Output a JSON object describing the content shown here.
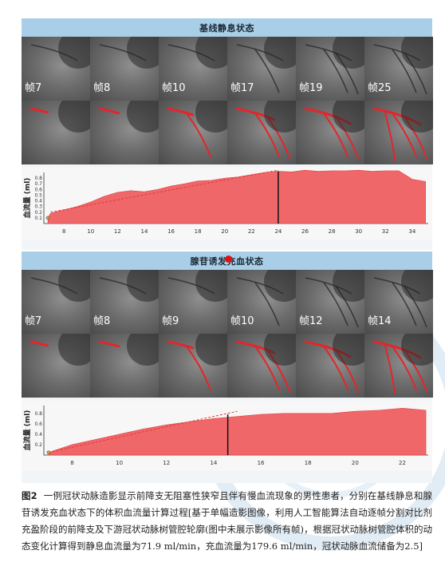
{
  "panels": [
    {
      "title": "基线静息状态",
      "frame_labels": [
        "帧7",
        "帧8",
        "帧10",
        "帧17",
        "帧19",
        "帧25"
      ],
      "chart_data": {
        "type": "area",
        "ylabel": "血流量 (ml)",
        "xlim": [
          6.5,
          35.2
        ],
        "ylim": [
          0,
          0.9
        ],
        "xticks": [
          8,
          10,
          12,
          14,
          16,
          18,
          20,
          22,
          24,
          26,
          28,
          30,
          32,
          34
        ],
        "yticks": [
          0.1,
          0.2,
          0.3,
          0.4,
          0.5,
          0.6,
          0.7,
          0.8
        ],
        "x": [
          6.8,
          7,
          8,
          9,
          10,
          11,
          12,
          13,
          14,
          15,
          16,
          17,
          18,
          19,
          20,
          21,
          22,
          23,
          24,
          25,
          26,
          27,
          28,
          29,
          30,
          31,
          32,
          33,
          34,
          35
        ],
        "y": [
          0.1,
          0.18,
          0.24,
          0.3,
          0.38,
          0.48,
          0.55,
          0.58,
          0.56,
          0.6,
          0.66,
          0.7,
          0.75,
          0.76,
          0.8,
          0.82,
          0.86,
          0.9,
          0.92,
          0.91,
          0.94,
          0.92,
          0.93,
          0.93,
          0.94,
          0.92,
          0.93,
          0.93,
          0.78,
          0.74
        ],
        "trend_x": [
          7,
          24
        ],
        "trend_y": [
          0.2,
          0.94
        ],
        "marker_x": 24,
        "marker_y": 0.92
      }
    },
    {
      "title": "腺苷诱发充血状态",
      "frame_labels": [
        "帧7",
        "帧8",
        "帧9",
        "帧10",
        "帧12",
        "帧14"
      ],
      "chart_data": {
        "type": "area",
        "ylabel": "血流量 (ml)",
        "xlim": [
          6.8,
          23.1
        ],
        "ylim": [
          0,
          0.95
        ],
        "xticks": [
          8,
          10,
          12,
          14,
          16,
          18,
          20,
          22
        ],
        "yticks": [
          0.2,
          0.4,
          0.6,
          0.8
        ],
        "x": [
          7,
          8,
          9,
          10,
          11,
          12,
          13,
          14,
          15,
          16,
          17,
          18,
          19,
          20,
          21,
          22,
          23
        ],
        "y": [
          0.05,
          0.2,
          0.3,
          0.4,
          0.5,
          0.58,
          0.64,
          0.7,
          0.74,
          0.78,
          0.8,
          0.8,
          0.8,
          0.84,
          0.86,
          0.9,
          0.86
        ],
        "trend_x": [
          7,
          15
        ],
        "trend_y": [
          0.05,
          0.84
        ],
        "marker_x": 14.6,
        "marker_y": 0.78
      }
    }
  ],
  "caption": {
    "label": "图2",
    "text": "一例冠状动脉造影显示前降支无阻塞性狭窄且伴有慢血流现象的男性患者，分别在基线静息和腺苷诱发充血状态下的体积血流量计算过程[基于单幅造影图像，利用人工智能算法自动逐帧分割对比剂充盈阶段的前降支及下游冠状动脉树管腔轮廓(图中未展示影像所有帧)，根据冠状动脉树管腔体积的动态变化计算得到静息血流量为71.9 ml/min，充血流量为179.6 ml/min，冠状动脉血流储备为2.5]"
  },
  "colors": {
    "band": "#a9cfe8",
    "area": "#ef5a5c",
    "trend": "#e03a3a",
    "marker": "#111111"
  }
}
